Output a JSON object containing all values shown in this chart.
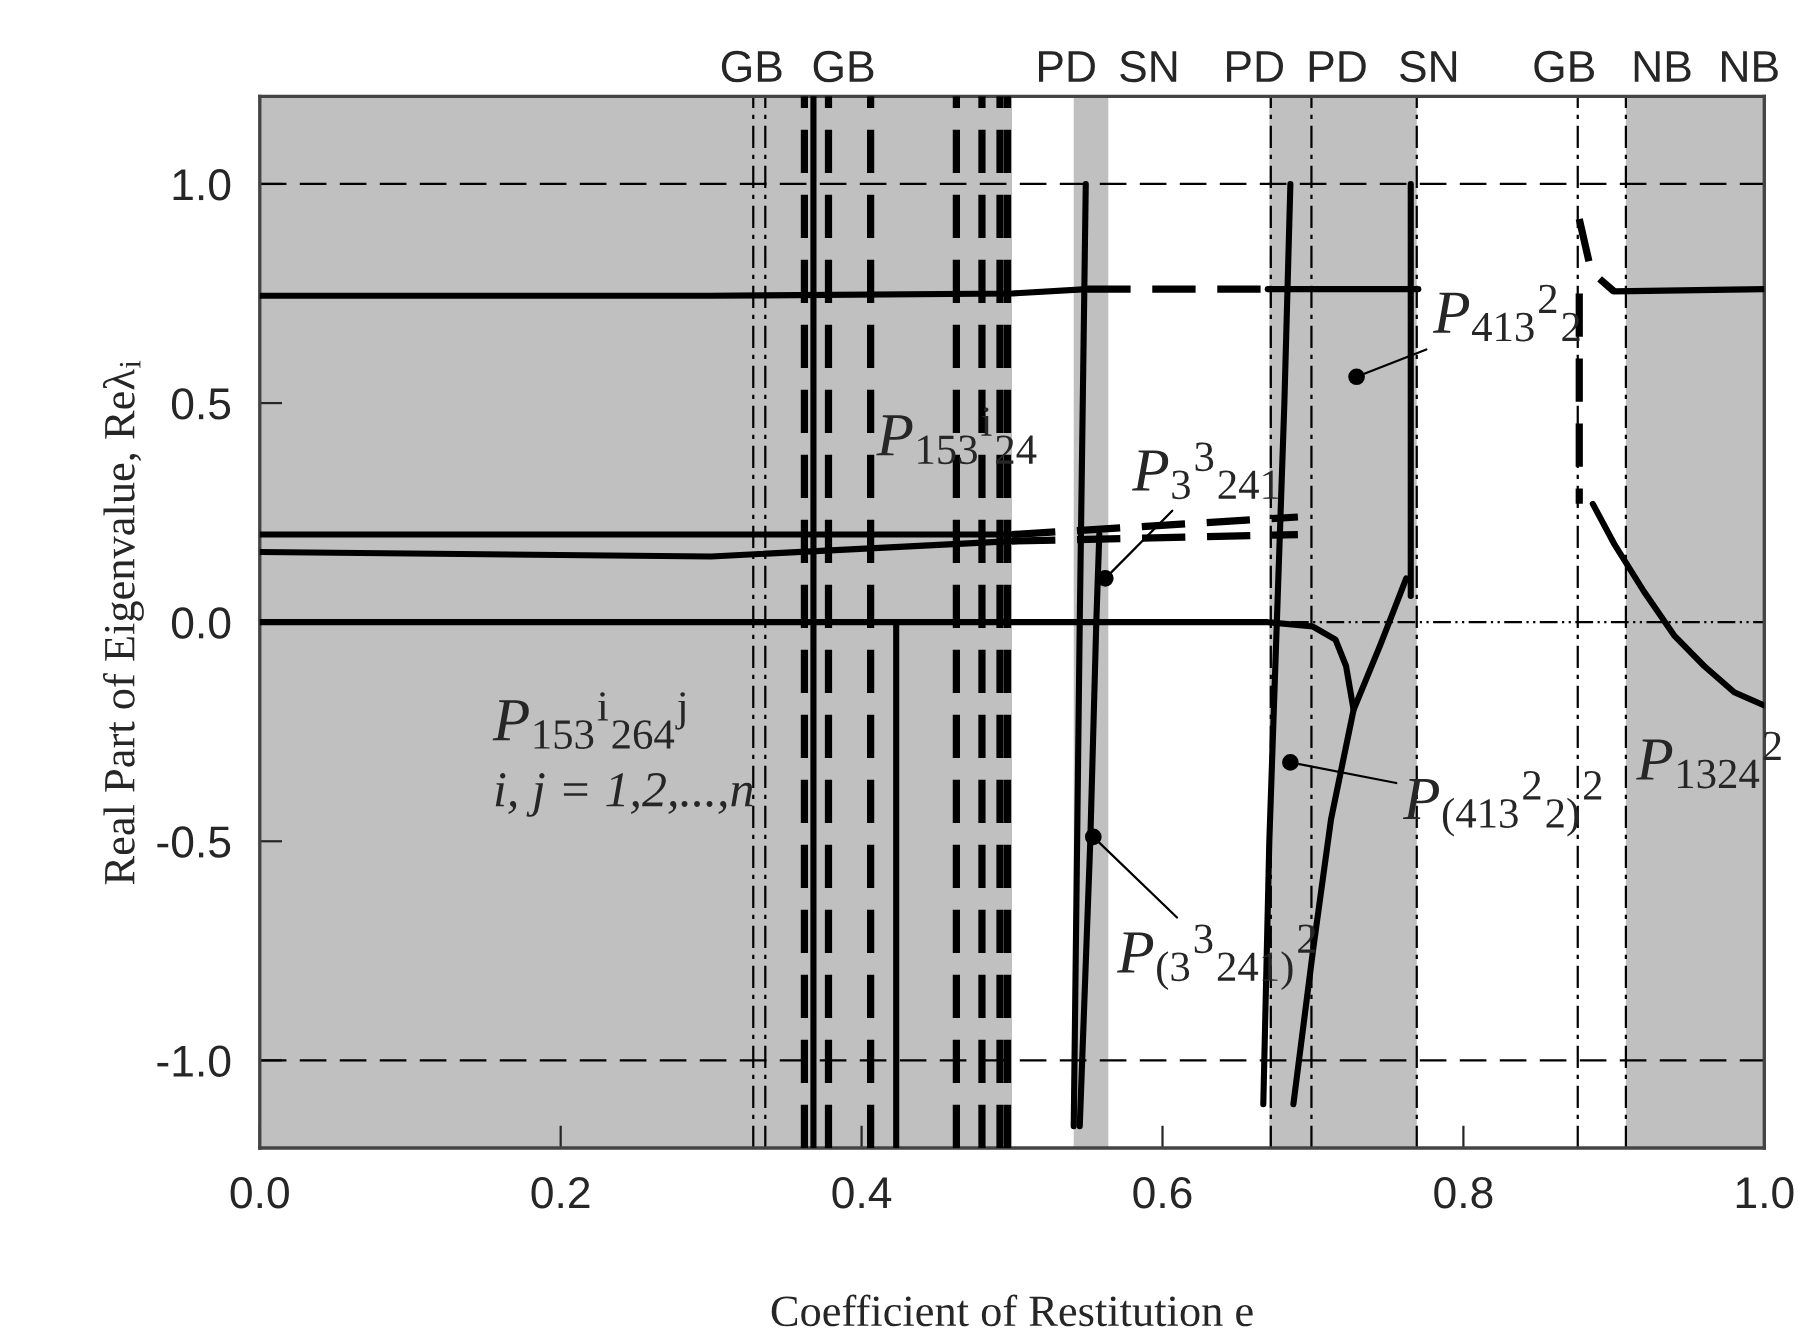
{
  "chart_data": {
    "type": "line",
    "xlabel": "Coefficient of Restitution e",
    "ylabel": "Real Part of Eigenvalue, Reλ$_{i}$",
    "xlim": [
      0,
      1.0
    ],
    "ylim": [
      -1.2,
      1.2
    ],
    "xticks": [
      {
        "value": 0,
        "label": "0.0"
      },
      {
        "value": 0.2,
        "label": "0.2"
      },
      {
        "value": 0.4,
        "label": "0.4"
      },
      {
        "value": 0.6,
        "label": "0.6"
      },
      {
        "value": 0.8,
        "label": "0.8"
      },
      {
        "value": 1.0,
        "label": "1.0"
      }
    ],
    "yticks": [
      {
        "value": -1.0,
        "label": "-1.0"
      },
      {
        "value": -0.5,
        "label": "-0.5"
      },
      {
        "value": 0,
        "label": "0.0"
      },
      {
        "value": 0.5,
        "label": "0.5"
      },
      {
        "value": 1.0,
        "label": "1.0"
      }
    ],
    "grid": false,
    "legend": false,
    "marker": "none",
    "bands": [
      {
        "axis": "x",
        "from": 0,
        "to": 0.5,
        "color": "#c0c0c0"
      },
      {
        "axis": "x",
        "from": 0.541,
        "to": 0.564,
        "color": "#c0c0c0"
      },
      {
        "axis": "x",
        "from": 0.671,
        "to": 0.769,
        "color": "#c0c0c0"
      },
      {
        "axis": "x",
        "from": 0.908,
        "to": 1.0,
        "color": "#c0c0c0"
      }
    ],
    "ref_lines": [
      {
        "axis": "y",
        "value": 1.0,
        "line_style": "dashed"
      },
      {
        "axis": "y",
        "value": -1.0,
        "line_style": "dashed"
      },
      {
        "axis": "y",
        "value": 0,
        "line_style": "dotted"
      },
      {
        "axis": "x",
        "value": 0.328,
        "line_style": "dashed"
      },
      {
        "axis": "x",
        "value": 0.336,
        "line_style": "dashed"
      },
      {
        "axis": "x",
        "value": 0.672,
        "line_style": "dashed"
      },
      {
        "axis": "x",
        "value": 0.699,
        "line_style": "dashed"
      },
      {
        "axis": "x",
        "value": 0.769,
        "line_style": "dashed"
      },
      {
        "axis": "x",
        "value": 0.876,
        "line_style": "dashed"
      },
      {
        "axis": "x",
        "value": 0.908,
        "line_style": "dashed"
      }
    ],
    "series": [
      {
        "color": "#000000",
        "line_style": "dashed",
        "x": [
          0.362,
          0.362
        ],
        "values": [
          -1.2,
          1.2
        ]
      },
      {
        "color": "#000000",
        "line_style": "solid",
        "x": [
          0.368,
          0.368
        ],
        "values": [
          -1.2,
          1.2
        ]
      },
      {
        "color": "#000000",
        "line_style": "dashed",
        "x": [
          0.378,
          0.378
        ],
        "values": [
          -1.2,
          1.2
        ]
      },
      {
        "color": "#000000",
        "line_style": "dashed",
        "x": [
          0.406,
          0.406
        ],
        "values": [
          -1.2,
          1.2
        ]
      },
      {
        "color": "#000000",
        "line_style": "solid",
        "x": [
          0.423,
          0.423
        ],
        "values": [
          0,
          -1.2
        ]
      },
      {
        "color": "#000000",
        "line_style": "dashed",
        "x": [
          0.463,
          0.463
        ],
        "values": [
          -1.2,
          1.2
        ]
      },
      {
        "color": "#000000",
        "line_style": "dashed",
        "x": [
          0.48,
          0.48
        ],
        "values": [
          -1.2,
          1.2
        ]
      },
      {
        "color": "#000000",
        "line_style": "dashed",
        "x": [
          0.492,
          0.492
        ],
        "values": [
          -1.2,
          1.2
        ]
      },
      {
        "color": "#000000",
        "line_style": "dashed",
        "x": [
          0.497,
          0.497
        ],
        "values": [
          -1.2,
          1.2
        ]
      },
      {
        "color": "#000000",
        "line_style": "solid",
        "x": [
          0,
          0.3,
          0.5,
          0.55
        ],
        "values": [
          0.745,
          0.745,
          0.75,
          0.76
        ]
      },
      {
        "color": "#000000",
        "line_style": "dashed",
        "x": [
          0.55,
          0.67
        ],
        "values": [
          0.76,
          0.76
        ]
      },
      {
        "color": "#000000",
        "line_style": "solid",
        "x": [
          0.67,
          0.77
        ],
        "values": [
          0.76,
          0.76
        ]
      },
      {
        "color": "#000000",
        "line_style": "dashed",
        "x": [
          0.877,
          0.885,
          0.9
        ],
        "values": [
          0.92,
          0.8,
          0.755
        ]
      },
      {
        "color": "#000000",
        "line_style": "solid",
        "x": [
          0.9,
          1.0
        ],
        "values": [
          0.755,
          0.76
        ]
      },
      {
        "color": "#000000",
        "line_style": "solid",
        "x": [
          0,
          0.5
        ],
        "values": [
          0.2,
          0.2
        ]
      },
      {
        "color": "#000000",
        "line_style": "dashed",
        "x": [
          0.5,
          0.69
        ],
        "values": [
          0.2,
          0.24
        ]
      },
      {
        "color": "#000000",
        "line_style": "solid",
        "x": [
          0,
          0.3,
          0.5
        ],
        "values": [
          0.16,
          0.15,
          0.185
        ]
      },
      {
        "color": "#000000",
        "line_style": "dashed",
        "x": [
          0.5,
          0.69
        ],
        "values": [
          0.185,
          0.2
        ]
      },
      {
        "color": "#000000",
        "line_style": "solid",
        "x": [
          0,
          0.55,
          0.67,
          0.7,
          0.715,
          0.722,
          0.727
        ],
        "values": [
          0,
          0,
          0,
          -0.01,
          -0.04,
          -0.1,
          -0.2
        ]
      },
      {
        "color": "#000000",
        "line_style": "solid",
        "x": [
          0.541,
          0.545,
          0.549
        ],
        "values": [
          -1.15,
          0,
          1.0
        ]
      },
      {
        "color": "#000000",
        "line_style": "solid",
        "x": [
          0.545,
          0.552,
          0.556,
          0.558
        ],
        "values": [
          -1.15,
          -0.5,
          0,
          0.2
        ]
      },
      {
        "color": "#000000",
        "line_style": "solid",
        "x": [
          0.667,
          0.671,
          0.676,
          0.681,
          0.685
        ],
        "values": [
          -1.1,
          -0.5,
          0,
          0.5,
          1.0
        ]
      },
      {
        "color": "#000000",
        "line_style": "solid",
        "x": [
          0.687,
          0.7,
          0.712,
          0.727,
          0.745,
          0.762
        ],
        "values": [
          -1.1,
          -0.75,
          -0.45,
          -0.2,
          -0.05,
          0.1
        ]
      },
      {
        "color": "#000000",
        "line_style": "solid",
        "x": [
          0.765,
          0.765
        ],
        "values": [
          0.06,
          1.0
        ]
      },
      {
        "color": "#000000",
        "line_style": "dashed",
        "x": [
          0.877,
          0.877
        ],
        "values": [
          0.75,
          0.27
        ]
      },
      {
        "color": "#000000",
        "line_style": "solid",
        "x": [
          0.886,
          0.9,
          0.92,
          0.94,
          0.96,
          0.98,
          1.0
        ],
        "values": [
          0.27,
          0.18,
          0.07,
          -0.03,
          -0.1,
          -0.16,
          -0.19
        ]
      }
    ],
    "annotations": [
      "P$_{153}$$^{i}$$_{264}$$^{j}$",
      "i, j = 1,2,...,n",
      "P$_{153}$$^{i}$$_{24}$",
      {
        "text": "P$_{3}$$^{3}$$_{241}$",
        "x": 0.562,
        "y": 0.1
      },
      {
        "text": "P$_{413}$$^{2}$$_{2}$",
        "x": 0.729,
        "y": 0.56
      },
      {
        "text": "P$_{(413}$$^{2}$$_{2)}$$^{2}$",
        "x": 0.685,
        "y": -0.32
      },
      {
        "text": "P$_{(3}$$^{3}$$_{241)}$$^{2}$",
        "x": 0.554,
        "y": -0.49
      },
      "P$_{1324}$$^{2}$",
      "GB",
      "GB",
      "PD",
      "SN",
      "PD",
      "PD",
      "SN",
      "GB",
      "NB",
      "NB"
    ]
  }
}
